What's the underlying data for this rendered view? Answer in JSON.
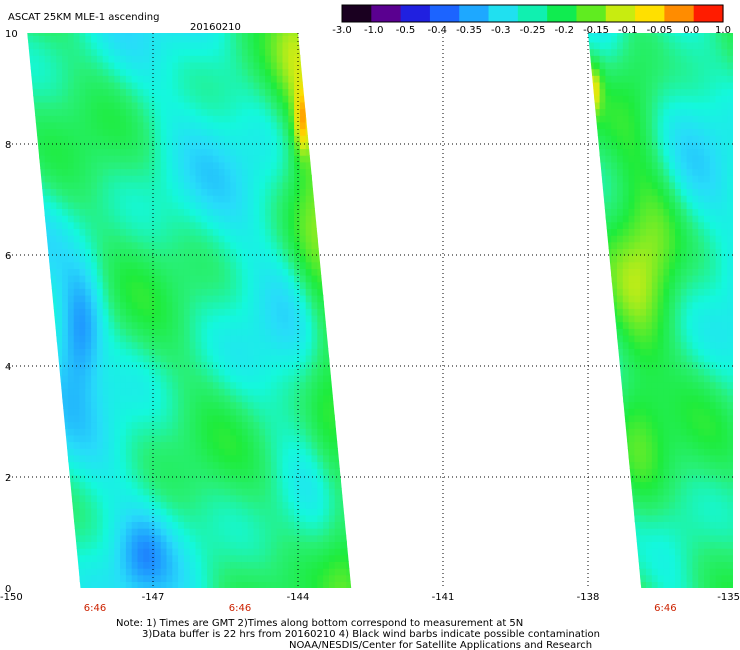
{
  "header": {
    "title": "ASCAT 25KM MLE-1 ascending",
    "date": "20160210"
  },
  "colorbar": {
    "labels": [
      "-3.0",
      "-1.0",
      "-0.5",
      "-0.4",
      "-0.35",
      "-0.3",
      "-0.25",
      "-0.2",
      "-0.15",
      "-0.1",
      "-0.05",
      "0.0",
      "1.0"
    ],
    "colors": [
      "#1a0020",
      "#5a0090",
      "#2020e0",
      "#1c64ff",
      "#1ea8ff",
      "#20e0f0",
      "#10f0b0",
      "#10ec50",
      "#60ec20",
      "#c8ec10",
      "#ffe000",
      "#ff8c00",
      "#ff1c00"
    ]
  },
  "chart_data": {
    "type": "heatmap",
    "title": "ASCAT 25KM MLE-1 ascending",
    "date": "20160210",
    "xlim": [
      -150,
      -135
    ],
    "ylim": [
      0,
      10
    ],
    "x_ticks": [
      "-150",
      "-147",
      "-144",
      "-141",
      "-138",
      "-135"
    ],
    "y_ticks": [
      "0",
      "2",
      "4",
      "6",
      "8",
      "10"
    ],
    "grid": true,
    "time_labels": [
      {
        "x": -148.2,
        "label": "6:46"
      },
      {
        "x": -145.2,
        "label": "6:46"
      },
      {
        "x": -136.4,
        "label": "6:46"
      }
    ],
    "swaths": [
      {
        "name": "",
        "left_edge": [
          [
            -149.6,
            10
          ],
          [
            -148.5,
            0
          ]
        ],
        "right_edge": [
          [
            -144.0,
            10
          ],
          [
            -142.9,
            0
          ]
        ]
      },
      {
        "name": "",
        "left_edge": [
          [
            -138.0,
            10
          ],
          [
            -136.9,
            0
          ]
        ],
        "right_edge": [
          [
            -135.0,
            10
          ],
          [
            -135.0,
            0
          ]
        ]
      }
    ],
    "value_range": [
      -0.3,
      -0.15
    ],
    "notes": "MLE values mostly between -0.3 and -0.15; minima near -0.4 at x=-148.8 to -148.2, y=3.8 to 5.6; maxima near -0.05 along right edge of western swath y=8 to 9.2 and left edge of eastern swath y=8.2 to 9.3"
  },
  "footer": {
    "note_line1": "Note: 1) Times are GMT 2)Times along bottom correspond to measurement at 5N",
    "note_line2": "3)Data buffer is 22 hrs from 20160210 4) Black wind barbs indicate possible contamination",
    "note_line3": "NOAA/NESDIS/Center for Satellite Applications and Research"
  }
}
